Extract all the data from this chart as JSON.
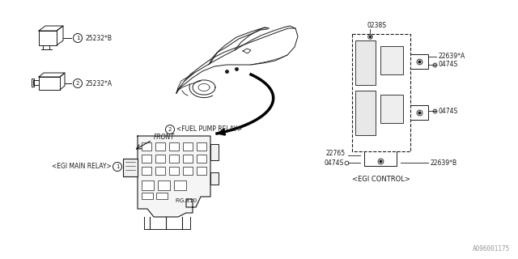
{
  "bg_color": "#ffffff",
  "line_color": "#1a1a1a",
  "text_color": "#1a1a1a",
  "fig_width": 6.4,
  "fig_height": 3.2,
  "dpi": 100,
  "watermark": "A096001175",
  "relay1_label": "25232*B",
  "relay2_label": "25232*A",
  "ecu_label0": "0238S",
  "ecu_label1": "22639*A",
  "ecu_label2": "0474S",
  "ecu_label3": "0474S",
  "ecu_label4": "22765",
  "ecu_label5": "0474S",
  "ecu_label6": "22639*B",
  "ecu_ctrl": "<EGI CONTROL>",
  "fuel_relay": "<FUEL PUMP RELAY>",
  "egi_main": "<EGI MAIN RELAY>",
  "fig810": "FIG.810",
  "front_label": "FRONT"
}
